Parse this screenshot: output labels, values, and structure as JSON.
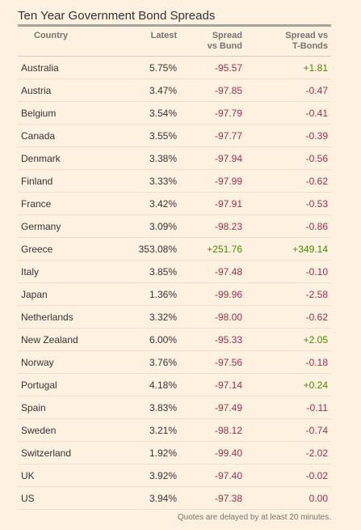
{
  "title": "Ten Year Government Bond Spreads",
  "columns": {
    "country": "Country",
    "latest": "Latest",
    "spread_bund_l1": "Spread",
    "spread_bund_l2": "vs Bund",
    "spread_tbond_l1": "Spread vs",
    "spread_tbond_l2": "T-Bonds"
  },
  "rows": [
    {
      "country": "Australia",
      "latest": "5.75%",
      "bund": "-95.57",
      "tbond": "+1.81"
    },
    {
      "country": "Austria",
      "latest": "3.47%",
      "bund": "-97.85",
      "tbond": "-0.47"
    },
    {
      "country": "Belgium",
      "latest": "3.54%",
      "bund": "-97.79",
      "tbond": "-0.41"
    },
    {
      "country": "Canada",
      "latest": "3.55%",
      "bund": "-97.77",
      "tbond": "-0.39"
    },
    {
      "country": "Denmark",
      "latest": "3.38%",
      "bund": "-97.94",
      "tbond": "-0.56"
    },
    {
      "country": "Finland",
      "latest": "3.33%",
      "bund": "-97.99",
      "tbond": "-0.62"
    },
    {
      "country": "France",
      "latest": "3.42%",
      "bund": "-97.91",
      "tbond": "-0.53"
    },
    {
      "country": "Germany",
      "latest": "3.09%",
      "bund": "-98.23",
      "tbond": "-0.86"
    },
    {
      "country": "Greece",
      "latest": "353.08%",
      "bund": "+251.76",
      "tbond": "+349.14"
    },
    {
      "country": "Italy",
      "latest": "3.85%",
      "bund": "-97.48",
      "tbond": "-0.10"
    },
    {
      "country": "Japan",
      "latest": "1.36%",
      "bund": "-99.96",
      "tbond": "-2.58"
    },
    {
      "country": "Netherlands",
      "latest": "3.32%",
      "bund": "-98.00",
      "tbond": "-0.62"
    },
    {
      "country": "New Zealand",
      "latest": "6.00%",
      "bund": "-95.33",
      "tbond": "+2.05"
    },
    {
      "country": "Norway",
      "latest": "3.76%",
      "bund": "-97.56",
      "tbond": "-0.18"
    },
    {
      "country": "Portugal",
      "latest": "4.18%",
      "bund": "-97.14",
      "tbond": "+0.24"
    },
    {
      "country": "Spain",
      "latest": "3.83%",
      "bund": "-97.49",
      "tbond": "-0.11"
    },
    {
      "country": "Sweden",
      "latest": "3.21%",
      "bund": "-98.12",
      "tbond": "-0.74"
    },
    {
      "country": "Switzerland",
      "latest": "1.92%",
      "bund": "-99.40",
      "tbond": "-2.02"
    },
    {
      "country": "UK",
      "latest": "3.92%",
      "bund": "-97.40",
      "tbond": "-0.02"
    },
    {
      "country": "US",
      "latest": "3.94%",
      "bund": "-97.38",
      "tbond": "0.00"
    }
  ],
  "footer": "Quotes are delayed by at least 20 minutes.",
  "colors": {
    "background": "#fff1e0",
    "negative": "#9e2f50",
    "positive": "#458b00"
  }
}
